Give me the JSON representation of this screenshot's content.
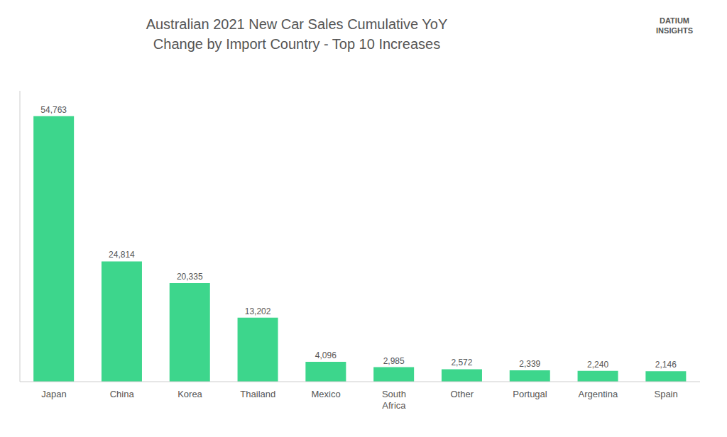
{
  "chart_data": {
    "type": "bar",
    "title": "Australian 2021 New Car Sales Cumulative YoY\nChange by Import Country - Top 10 Increases",
    "categories": [
      "Japan",
      "China",
      "Korea",
      "Thailand",
      "Mexico",
      "South\nAfrica",
      "Other",
      "Portugal",
      "Argentina",
      "Spain"
    ],
    "values": [
      54763,
      24814,
      20335,
      13202,
      4096,
      2985,
      2572,
      2339,
      2240,
      2146
    ],
    "value_labels": [
      "54,763",
      "24,814",
      "20,335",
      "13,202",
      "4,096",
      "2,985",
      "2,572",
      "2,339",
      "2,240",
      "2,146"
    ],
    "color": "#3DD68C",
    "ylim": [
      0,
      60000
    ],
    "data_labels": true,
    "tick_labels": "x",
    "grid": false,
    "annotations": [
      "DATIUM\nINSIGHTS"
    ]
  }
}
